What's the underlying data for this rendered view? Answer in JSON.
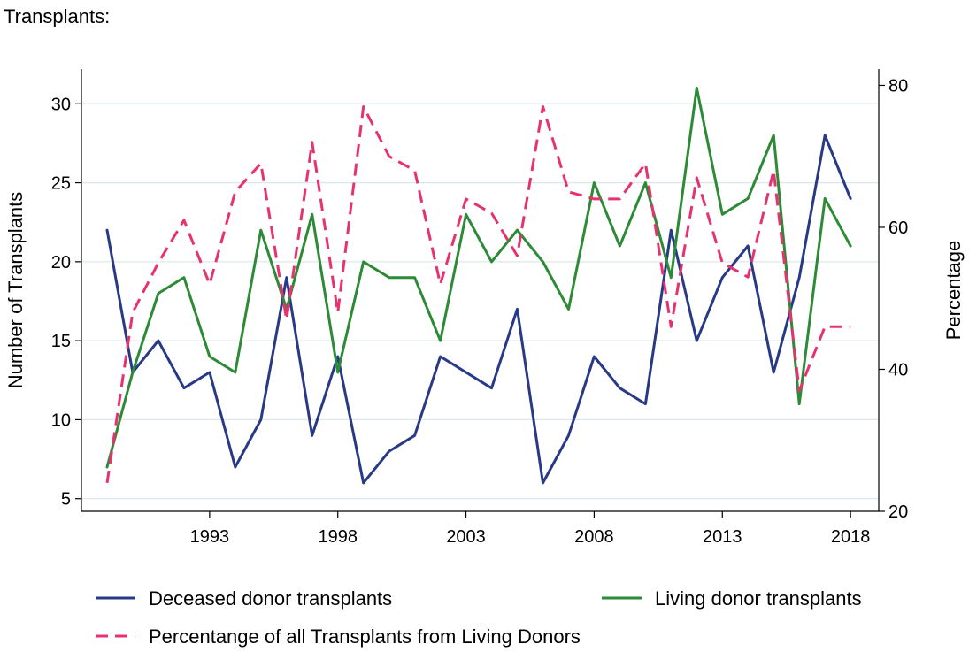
{
  "header": {
    "title": "Transplants:"
  },
  "chart_data": {
    "type": "line",
    "x": [
      1989,
      1990,
      1991,
      1992,
      1993,
      1994,
      1995,
      1996,
      1997,
      1998,
      1999,
      2000,
      2001,
      2002,
      2003,
      2004,
      2005,
      2006,
      2007,
      2008,
      2009,
      2010,
      2011,
      2012,
      2013,
      2014,
      2015,
      2016,
      2017,
      2018
    ],
    "series": [
      {
        "name": "Deceased donor transplants",
        "axis": "left",
        "color": "#283a86",
        "dash": "solid",
        "values": [
          22,
          13,
          15,
          12,
          13,
          7,
          10,
          19,
          9,
          14,
          6,
          8,
          9,
          14,
          13,
          12,
          17,
          6,
          9,
          14,
          12,
          11,
          22,
          15,
          19,
          21,
          13,
          19,
          28,
          24
        ]
      },
      {
        "name": "Living donor transplants",
        "axis": "left",
        "color": "#2d8a37",
        "dash": "solid",
        "values": [
          7,
          13,
          18,
          19,
          14,
          13,
          22,
          17,
          23,
          13,
          20,
          19,
          19,
          15,
          23,
          20,
          22,
          20,
          17,
          25,
          21,
          25,
          19,
          31,
          23,
          24,
          28,
          11,
          24,
          21
        ]
      },
      {
        "name": "Percentange of all Transplants from Living Donors",
        "axis": "right",
        "color": "#e6336f",
        "dash": "dashed",
        "values": [
          24,
          48,
          55,
          61,
          52,
          65,
          69,
          47,
          72,
          48,
          77,
          70,
          68,
          52,
          64,
          62,
          56,
          77,
          65,
          64,
          64,
          69,
          46,
          67,
          55,
          53,
          68,
          37,
          46,
          46
        ]
      }
    ],
    "x_ticks": [
      1993,
      1998,
      2003,
      2008,
      2013,
      2018
    ],
    "y_left": {
      "label": "Number of Transplants",
      "range": [
        4.2,
        32.2
      ],
      "ticks": [
        5,
        10,
        15,
        20,
        25,
        30
      ]
    },
    "y_right": {
      "label": "Percentage",
      "range": [
        20,
        82.3
      ],
      "ticks": [
        20,
        40,
        60,
        80
      ]
    },
    "x_range": [
      1988,
      2019.1
    ],
    "grid": "horizontal",
    "legend_position": "bottom"
  }
}
